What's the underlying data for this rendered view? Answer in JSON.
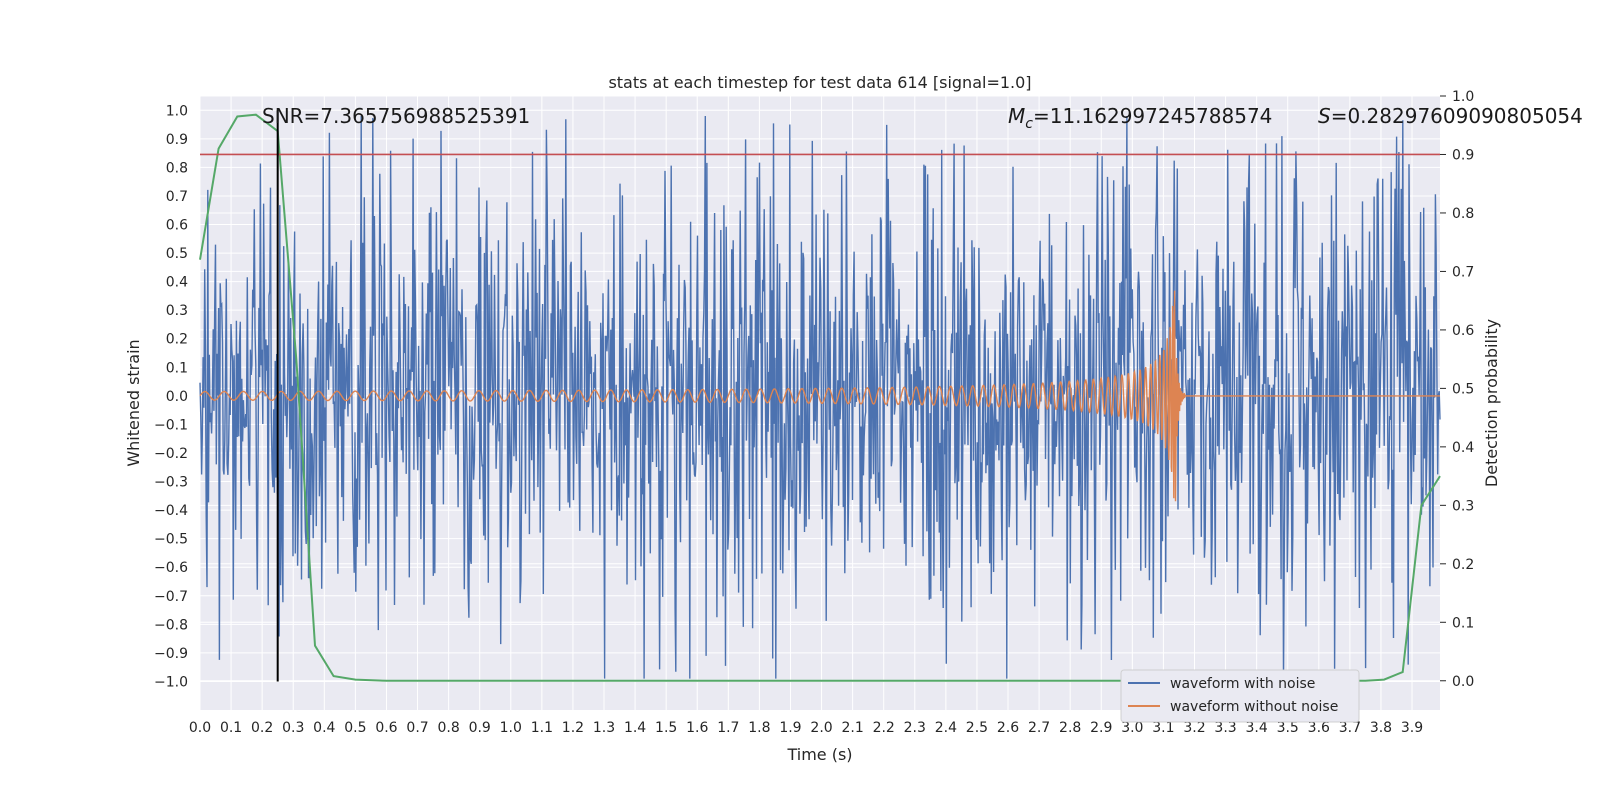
{
  "chart_data": {
    "type": "line",
    "title": "stats at each timestep for test data 614 [signal=1.0]",
    "xlabel": "Time (s)",
    "ylabel": "Whitened strain",
    "y2label": "Detection probability",
    "xlim": [
      0.0,
      3.99
    ],
    "ylim": [
      -1.1,
      1.05
    ],
    "y2lim": [
      -0.05,
      1.0
    ],
    "xticks": [
      "0.0",
      "0.1",
      "0.2",
      "0.3",
      "0.4",
      "0.5",
      "0.6",
      "0.7",
      "0.8",
      "0.9",
      "1.0",
      "1.1",
      "1.2",
      "1.3",
      "1.4",
      "1.5",
      "1.6",
      "1.7",
      "1.8",
      "1.9",
      "2.0",
      "2.1",
      "2.2",
      "2.3",
      "2.4",
      "2.5",
      "2.6",
      "2.7",
      "2.8",
      "2.9",
      "3.0",
      "3.1",
      "3.2",
      "3.3",
      "3.4",
      "3.5",
      "3.6",
      "3.7",
      "3.8",
      "3.9"
    ],
    "yticks": [
      "1.0",
      "0.9",
      "0.8",
      "0.7",
      "0.6",
      "0.5",
      "0.4",
      "0.3",
      "0.2",
      "0.1",
      "0.0",
      "−0.1",
      "−0.2",
      "−0.3",
      "−0.4",
      "−0.5",
      "−0.6",
      "−0.7",
      "−0.8",
      "−0.9",
      "−1.0"
    ],
    "y2ticks": [
      "1.0",
      "0.9",
      "0.8",
      "0.7",
      "0.6",
      "0.5",
      "0.4",
      "0.3",
      "0.2",
      "0.1",
      "0.0"
    ],
    "grid": true,
    "legend_position": "bottom-right",
    "series": [
      {
        "name": "waveform with noise",
        "axis": "left",
        "color": "#4c72b0",
        "description": "dense whitened noise approx. between -0.7 and +0.7 with spikes to about ±0.98"
      },
      {
        "name": "waveform without noise",
        "axis": "left",
        "color": "#dd8452",
        "description": "chirp oscillation growing from amplitude 0.015 to about 0.37 at t≈3.14 s then flat at 0"
      },
      {
        "name": "detection probability",
        "axis": "right",
        "color": "#55a868",
        "x": [
          0.0,
          0.06,
          0.12,
          0.18,
          0.25,
          0.31,
          0.37,
          0.43,
          0.5,
          0.6,
          3.0,
          3.75,
          3.81,
          3.87,
          3.93,
          3.99
        ],
        "y": [
          0.72,
          0.91,
          0.965,
          0.968,
          0.94,
          0.55,
          0.06,
          0.008,
          0.002,
          0.0,
          0.0,
          0.0,
          0.002,
          0.015,
          0.3,
          0.35
        ]
      }
    ],
    "hlines": [
      {
        "axis": "right",
        "y": 0.9,
        "color": "#c44e52"
      }
    ],
    "vlines": [
      {
        "x": 0.25,
        "ymin": -1.0,
        "ymax": 1.0,
        "color": "#000000"
      }
    ],
    "annotations": {
      "snr": "SNR=7.365756988525391",
      "mc_symbol": "M",
      "mc_sub": "c",
      "mc_value": "=11.162997245788574",
      "s_symbol": "S",
      "s_value": "=0.28297609090805054"
    }
  }
}
